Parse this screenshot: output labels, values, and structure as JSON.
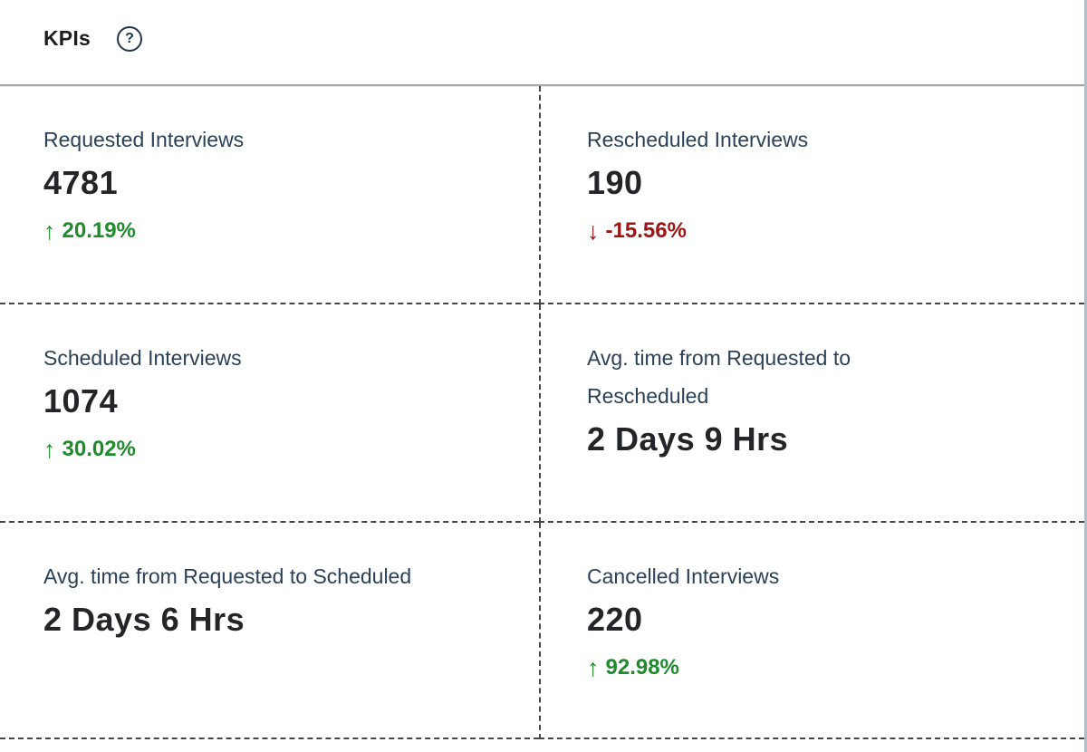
{
  "widget": {
    "title": "KPIs",
    "help_glyph": "?"
  },
  "colors": {
    "positive_green": "#1f8b2c",
    "negative_red": "#9c1414",
    "label_navy": "#2b4158",
    "value_dark": "#232528",
    "dashed_divider": "#454545",
    "header_divider": "#a6a6a6",
    "panel_right_border": "#b3bdcc"
  },
  "kpis": [
    {
      "id": "requested-interviews",
      "label": "Requested Interviews",
      "value": "4781",
      "arrow": "↑",
      "change": "20.19%",
      "trend": "positive"
    },
    {
      "id": "rescheduled-interviews",
      "label": "Rescheduled Interviews",
      "value": "190",
      "arrow": "↓",
      "change": "-15.56%",
      "trend": "negative"
    },
    {
      "id": "scheduled-interviews",
      "label": "Scheduled Interviews",
      "value": "1074",
      "arrow": "↑",
      "change": "30.02%",
      "trend": "positive"
    },
    {
      "id": "avg-time-requested-to-rescheduled",
      "label": "Avg. time from Requested to Rescheduled",
      "value": "2 Days 9 Hrs"
    },
    {
      "id": "avg-time-requested-to-scheduled",
      "label": "Avg. time from Requested to Scheduled",
      "value": "2 Days 6 Hrs"
    },
    {
      "id": "cancelled-interviews",
      "label": "Cancelled Interviews",
      "value": "220",
      "arrow": "↑",
      "change": "92.98%",
      "trend": "positive"
    }
  ]
}
